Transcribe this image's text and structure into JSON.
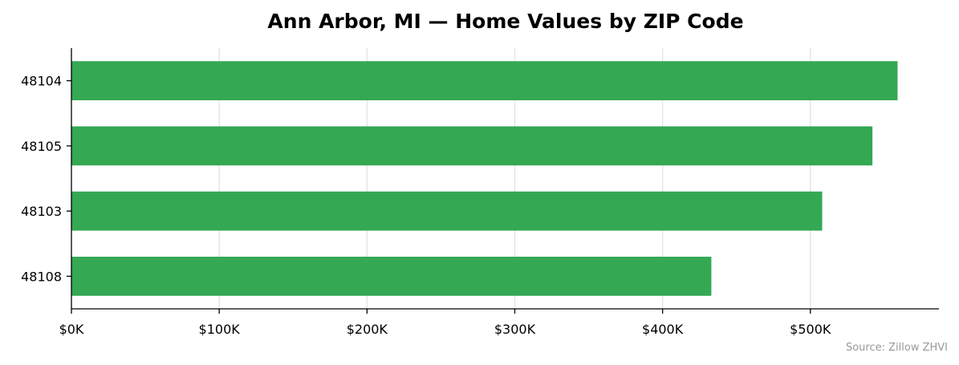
{
  "chart_data": {
    "type": "bar",
    "orientation": "horizontal",
    "title": "Ann Arbor, MI — Home Values by ZIP Code",
    "xlabel": "",
    "ylabel": "",
    "categories": [
      "48104",
      "48105",
      "48103",
      "48108"
    ],
    "values": [
      559000,
      542000,
      508000,
      433000
    ],
    "x_ticks": [
      0,
      100000,
      200000,
      300000,
      400000,
      500000
    ],
    "x_tick_labels": [
      "$0K",
      "$100K",
      "$200K",
      "$300K",
      "$400K",
      "$500K"
    ],
    "xlim": [
      0,
      587000
    ],
    "grid": "vertical",
    "legend": "none",
    "bar_color": "#34a853",
    "source": "Source: Zillow ZHVI"
  }
}
